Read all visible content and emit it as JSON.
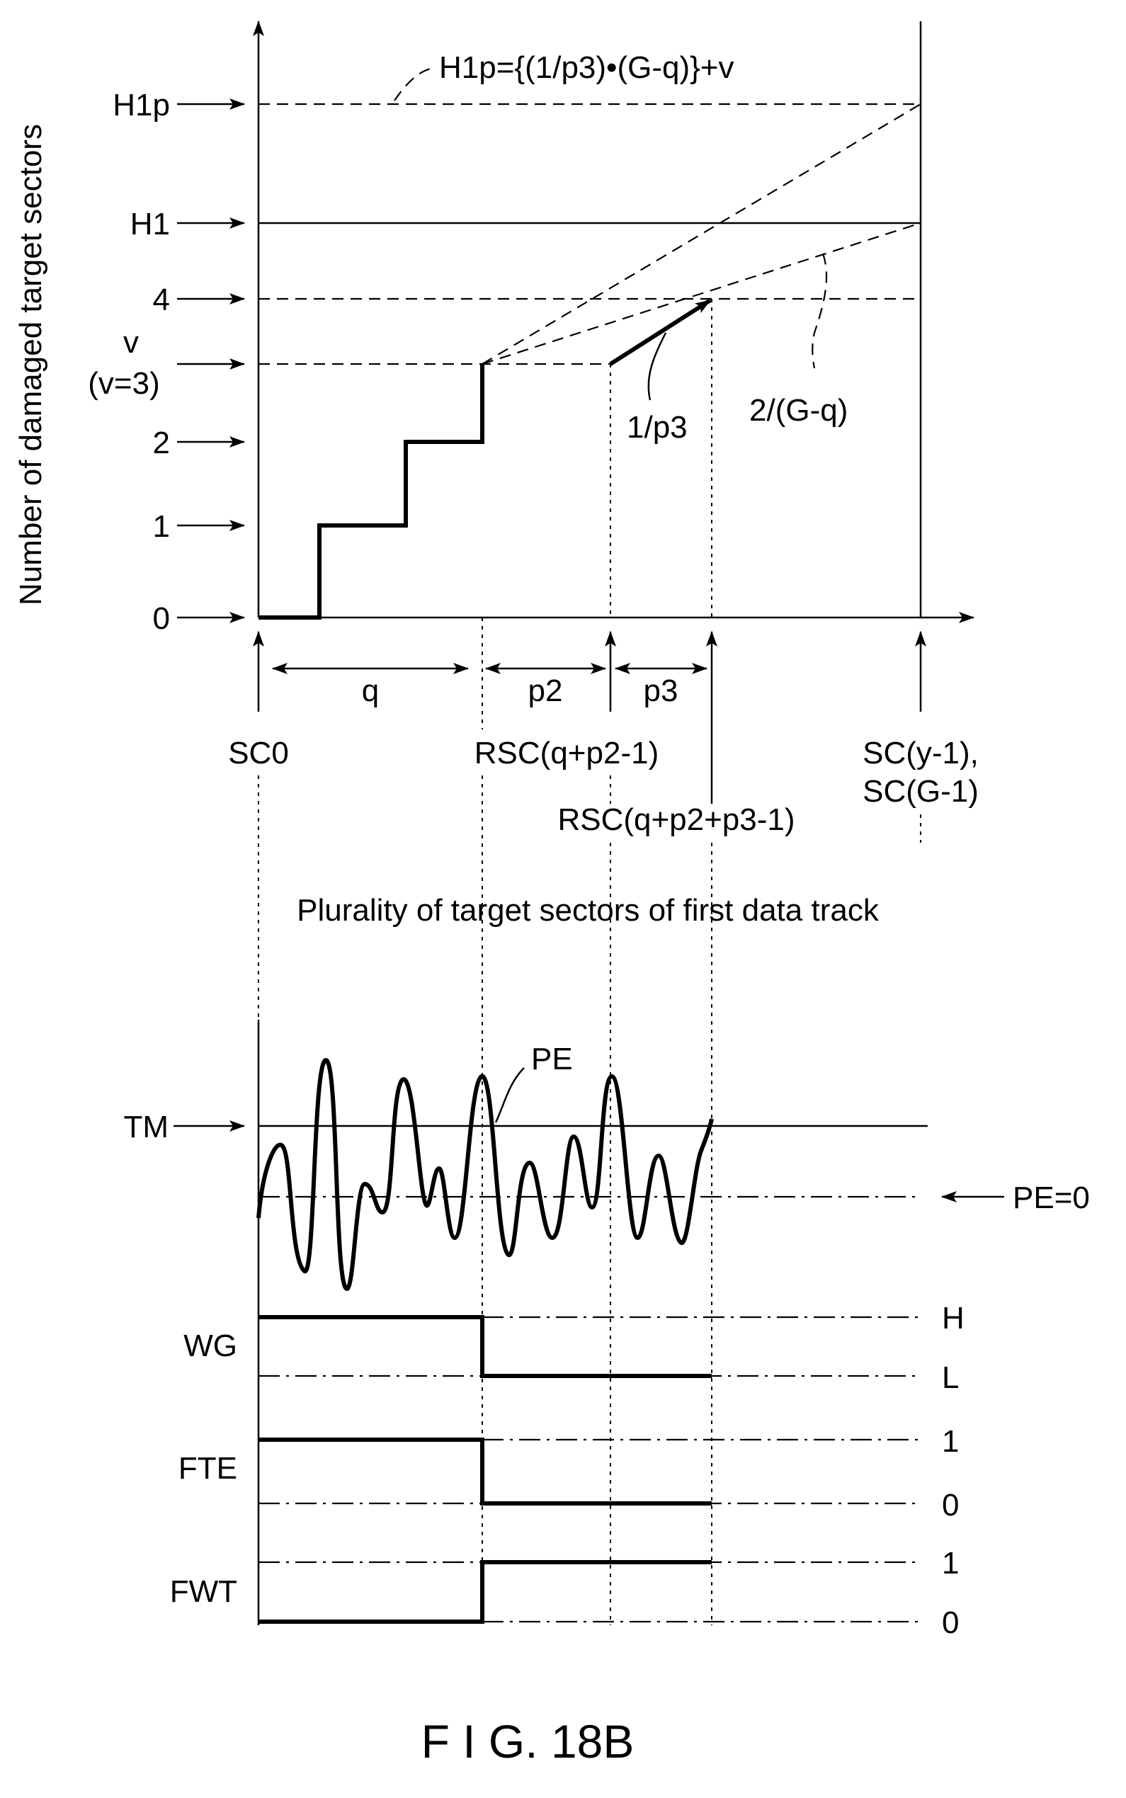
{
  "figure": {
    "caption": "F I G. 18B"
  },
  "graph": {
    "ylabel": "Number of damaged target sectors",
    "y_levels": {
      "h1p": "H1p",
      "h1": "H1",
      "four": "4",
      "v": "v",
      "v_eq": "(v=3)",
      "two": "2",
      "one": "1",
      "zero": "0"
    },
    "formula": "H1p={(1/p3)•(G-q)}+v",
    "slope_label_steep": "1/p3",
    "slope_label_shallow": "2/(G-q)",
    "intervals": {
      "q": "q",
      "p2": "p2",
      "p3": "p3"
    },
    "x_markers": {
      "sc0": "SC0",
      "rsc1": "RSC(q+p2-1)",
      "rsc2": "RSC(q+p2+p3-1)",
      "sc_end_1": "SC(y-1),",
      "sc_end_2": "SC(G-1)"
    },
    "track_caption": "Plurality of target sectors of first data track"
  },
  "timing": {
    "tm": "TM",
    "pe": "PE",
    "pe_zero": "PE=0",
    "signals": [
      {
        "name": "WG",
        "high": "H",
        "low": "L"
      },
      {
        "name": "FTE",
        "high": "1",
        "low": "0"
      },
      {
        "name": "FWT",
        "high": "1",
        "low": "0"
      }
    ]
  }
}
